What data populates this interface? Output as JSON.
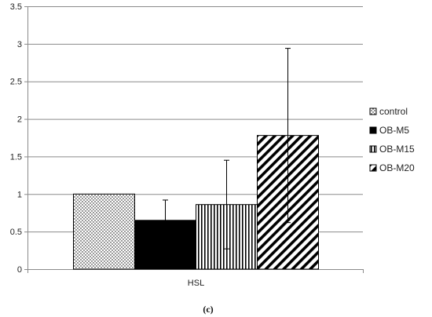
{
  "chart_data": {
    "type": "bar",
    "categories": [
      "HSL"
    ],
    "series": [
      {
        "name": "control",
        "values": [
          1.0
        ],
        "error": [
          0.0
        ],
        "pattern": "dots"
      },
      {
        "name": "OB-M5",
        "values": [
          0.65
        ],
        "error": [
          0.27
        ],
        "pattern": "solid"
      },
      {
        "name": "OB-M15",
        "values": [
          0.86
        ],
        "error": [
          0.59
        ],
        "pattern": "vertical-lines"
      },
      {
        "name": "OB-M20",
        "values": [
          1.78
        ],
        "error": [
          1.16
        ],
        "pattern": "diagonal-lines"
      }
    ],
    "yticks": [
      "0",
      "0.5",
      "1",
      "1.5",
      "2",
      "2.5",
      "3",
      "3.5"
    ],
    "ylim": [
      0,
      3.5
    ],
    "grid": true,
    "legend_position": "right",
    "colors": {
      "fill_dark": "#000000",
      "fill_light": "#ffffff",
      "grid": "#8a8a8a"
    }
  },
  "caption": "(c)"
}
